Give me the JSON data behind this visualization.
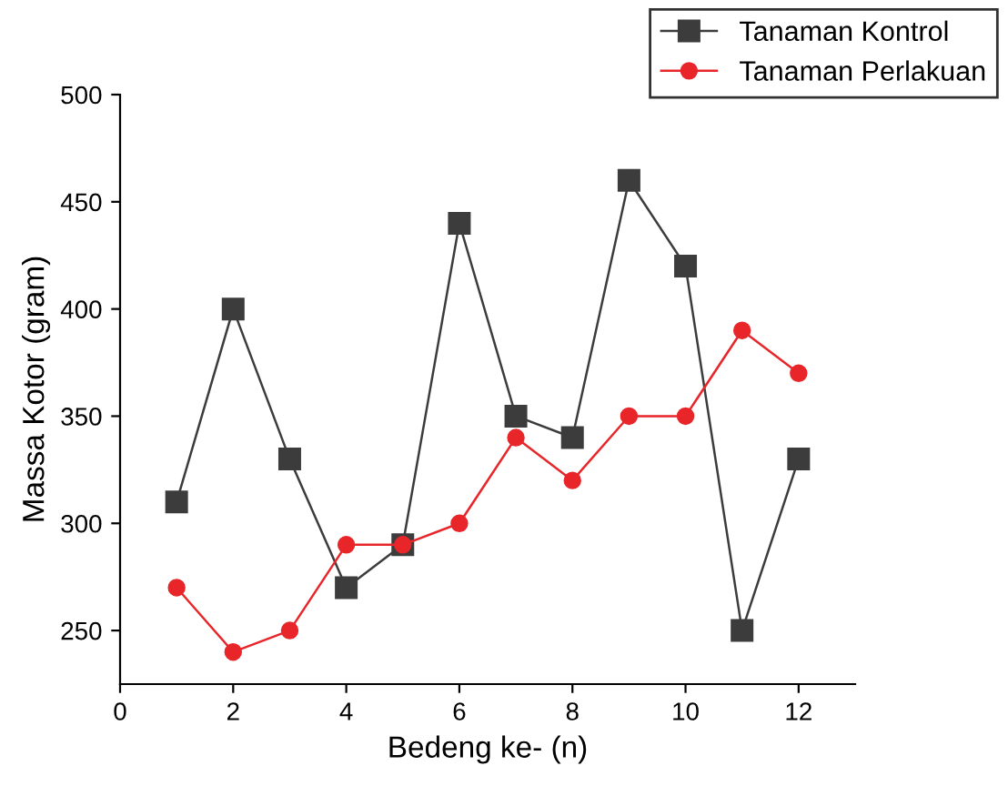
{
  "chart_data": {
    "type": "line",
    "xlabel": "Bedeng ke- (n)",
    "ylabel": "Massa Kotor (gram)",
    "x": [
      1,
      2,
      3,
      4,
      5,
      6,
      7,
      8,
      9,
      10,
      11,
      12
    ],
    "series": [
      {
        "name": "Tanaman Kontrol",
        "color": "#3c3c3c",
        "marker": "square",
        "values": [
          310,
          400,
          330,
          270,
          290,
          440,
          350,
          340,
          460,
          420,
          250,
          330
        ]
      },
      {
        "name": "Tanaman Perlakuan",
        "color": "#e8262a",
        "marker": "circle",
        "values": [
          270,
          240,
          250,
          290,
          290,
          300,
          340,
          320,
          350,
          350,
          390,
          370
        ]
      }
    ],
    "xlim": [
      0,
      13
    ],
    "xticks": [
      0,
      2,
      4,
      6,
      8,
      10,
      12
    ],
    "ylim": [
      225,
      500
    ],
    "yticks": [
      250,
      300,
      350,
      400,
      450,
      500
    ],
    "grid": false,
    "legend": "top right",
    "line_style": "solid"
  }
}
